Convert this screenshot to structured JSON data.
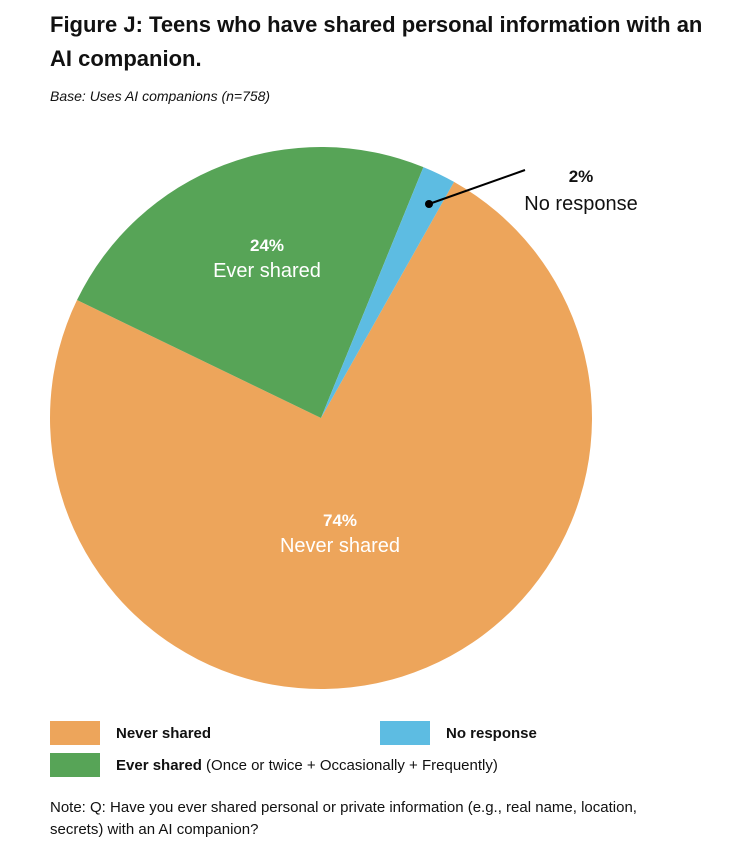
{
  "chart_data": {
    "type": "pie",
    "title": "Figure J: Teens who have shared personal information with an AI companion.",
    "subtitle": "Base: Uses AI companions (n=758)",
    "slices": [
      {
        "label": "Never shared",
        "value": 74,
        "display": "74%",
        "color": "#EDA55B"
      },
      {
        "label": "Ever shared",
        "value": 24,
        "display": "24%",
        "color": "#57A457"
      },
      {
        "label": "No response",
        "value": 2,
        "display": "2%",
        "color": "#5DBCE2"
      }
    ],
    "legend": [
      {
        "label": "Never shared",
        "detail": "",
        "color": "#EDA55B"
      },
      {
        "label": "No response",
        "detail": "",
        "color": "#5DBCE2"
      },
      {
        "label": "Ever shared",
        "detail": " (Once or twice + Occasionally + Frequently)",
        "color": "#57A457"
      }
    ],
    "note": "Note: Q: Have you ever shared personal or private information (e.g., real name, location, secrets) with an AI companion?"
  }
}
